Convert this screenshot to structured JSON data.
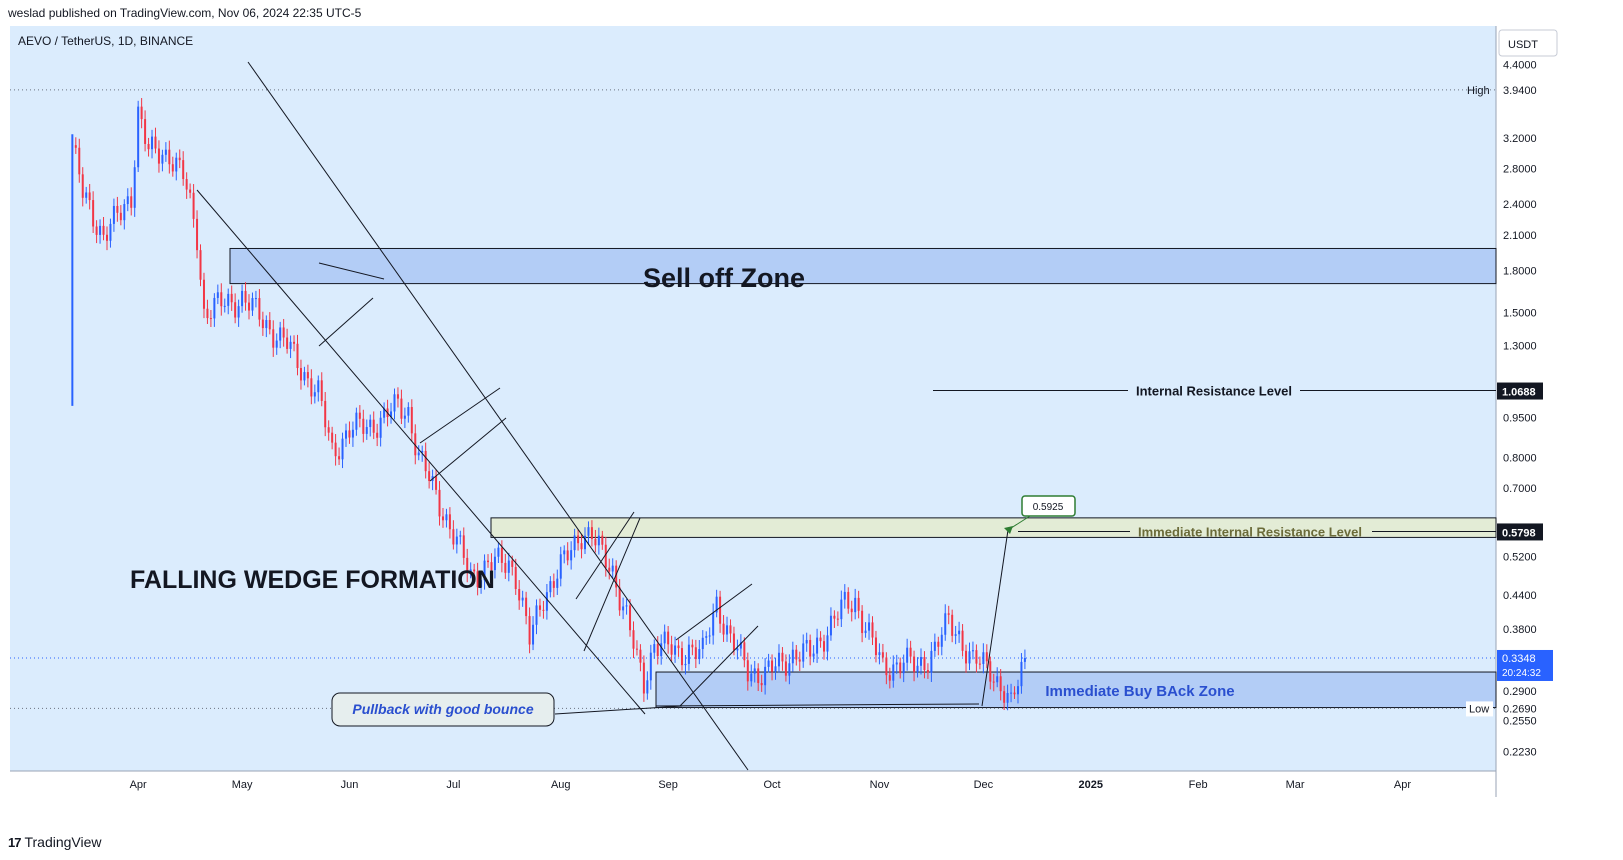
{
  "header": {
    "published": "weslad published on TradingView.com, Nov 06, 2024 22:35 UTC-5",
    "symbol": "AEVO / TetherUS, 1D, BINANCE"
  },
  "footer": {
    "brand": "TradingView"
  },
  "axis": {
    "currency": "USDT",
    "y_ticks": [
      "4.4000",
      "3.2000",
      "2.8000",
      "2.4000",
      "2.1000",
      "1.8000",
      "1.5000",
      "1.3000",
      "0.9500",
      "0.8000",
      "0.7000",
      "0.5200",
      "0.4400",
      "0.3800",
      "0.2900",
      "0.2550",
      "0.2230"
    ],
    "x_ticks": [
      "Apr",
      "May",
      "Jun",
      "Jul",
      "Aug",
      "Sep",
      "Oct",
      "Nov",
      "Dec",
      "2025",
      "Feb",
      "Mar",
      "Apr"
    ]
  },
  "price_tags": {
    "high_label": "High",
    "high_value": "3.9400",
    "low_label": "Low",
    "low_value": "0.2690",
    "internal_res": "1.0688",
    "immediate_res": "0.5798",
    "current": "0.3348",
    "countdown": "20:24:32",
    "target_box": "0.5925"
  },
  "annotations": {
    "sell_zone": "Sell off Zone",
    "internal_resistance": "Internal Resistance Level",
    "immediate_resistance": "Immediate Internal Resistance Level",
    "buy_zone": "Immediate Buy BAck Zone",
    "pattern": "FALLING WEDGE FORMATION",
    "pullback": "Pullback with good bounce"
  },
  "colors": {
    "background": "#dbecfd",
    "up": "#2962ff",
    "down": "#f23645",
    "zone_blue": "#b3cdf6",
    "zone_green": "#e3ecd6",
    "target_green": "#2e7d32"
  },
  "chart_data": {
    "type": "candlestick",
    "scale": "log",
    "ylim": [
      0.205,
      5.2
    ],
    "days_anchor": "2024-03-13",
    "x_range_days": [
      -18,
      411
    ],
    "key_levels": {
      "high": 3.94,
      "low": 0.269,
      "internal_resistance": 1.0688,
      "immediate_resistance": 0.5798,
      "current": 0.3348,
      "target": 0.5925
    },
    "zones": [
      {
        "name": "Sell off Zone",
        "from": 1.7,
        "to": 1.98
      },
      {
        "name": "Immediate Internal Resistance Level",
        "from": 0.565,
        "to": 0.615
      },
      {
        "name": "Immediate Buy BAck Zone",
        "from": 0.27,
        "to": 0.315
      }
    ],
    "closes_anchor": [
      [
        0,
        3.1
      ],
      [
        3,
        2.5
      ],
      [
        9,
        2.1
      ],
      [
        14,
        2.3
      ],
      [
        17,
        2.5
      ],
      [
        19,
        3.6
      ],
      [
        22,
        3.0
      ],
      [
        28,
        3.0
      ],
      [
        32,
        2.7
      ],
      [
        36,
        2.1
      ],
      [
        38,
        1.5
      ],
      [
        43,
        1.55
      ],
      [
        49,
        1.6
      ],
      [
        55,
        1.45
      ],
      [
        62,
        1.3
      ],
      [
        71,
        1.05
      ],
      [
        75,
        0.82
      ],
      [
        80,
        0.9
      ],
      [
        86,
        0.92
      ],
      [
        90,
        0.95
      ],
      [
        94,
        1.0
      ],
      [
        97,
        0.98
      ],
      [
        100,
        0.8
      ],
      [
        106,
        0.66
      ],
      [
        111,
        0.55
      ],
      [
        115,
        0.48
      ],
      [
        120,
        0.5
      ],
      [
        126,
        0.51
      ],
      [
        128,
        0.48
      ],
      [
        132,
        0.36
      ],
      [
        136,
        0.44
      ],
      [
        143,
        0.52
      ],
      [
        147,
        0.58
      ],
      [
        150,
        0.57
      ],
      [
        153,
        0.52
      ],
      [
        156,
        0.49
      ],
      [
        160,
        0.4
      ],
      [
        163,
        0.33
      ],
      [
        165,
        0.3
      ],
      [
        168,
        0.36
      ],
      [
        175,
        0.34
      ],
      [
        178,
        0.35
      ],
      [
        182,
        0.34
      ],
      [
        186,
        0.43
      ],
      [
        190,
        0.36
      ],
      [
        195,
        0.32
      ],
      [
        200,
        0.31
      ],
      [
        205,
        0.33
      ],
      [
        208,
        0.34
      ],
      [
        213,
        0.34
      ],
      [
        218,
        0.38
      ],
      [
        223,
        0.42
      ],
      [
        226,
        0.43
      ],
      [
        230,
        0.37
      ],
      [
        234,
        0.32
      ],
      [
        240,
        0.33
      ],
      [
        244,
        0.32
      ],
      [
        249,
        0.35
      ],
      [
        253,
        0.39
      ],
      [
        256,
        0.37
      ],
      [
        260,
        0.33
      ],
      [
        265,
        0.32
      ],
      [
        269,
        0.29
      ],
      [
        271,
        0.27
      ],
      [
        273,
        0.3
      ],
      [
        275,
        0.3348
      ]
    ]
  }
}
